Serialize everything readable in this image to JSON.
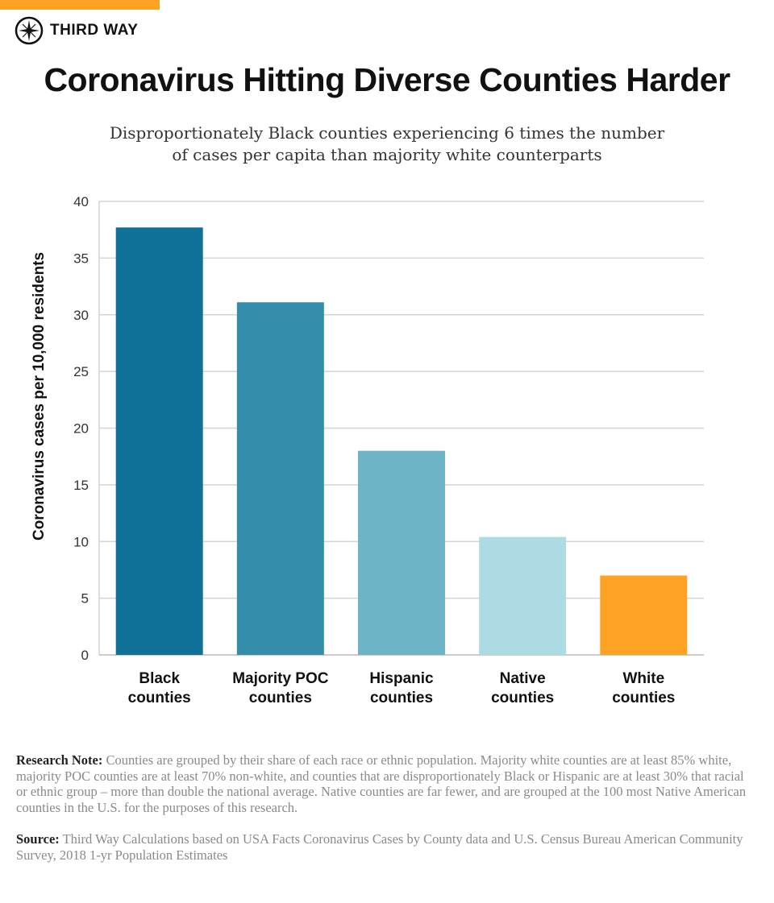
{
  "brand": {
    "name": "THIRD WAY",
    "accent": "#fda223",
    "logo_icon": "compass-star-icon"
  },
  "chart_data": {
    "type": "bar",
    "title": "Coronavirus Hitting Diverse Counties Harder",
    "subtitle": "Disproportionately Black counties experiencing 6 times the number of cases per capita than majority white counterparts",
    "categories": [
      [
        "Black",
        "counties"
      ],
      [
        "Majority POC",
        "counties"
      ],
      [
        "Hispanic",
        "counties"
      ],
      [
        "Native",
        "counties"
      ],
      [
        "White",
        "counties"
      ]
    ],
    "values": [
      37.7,
      31.1,
      18.0,
      10.4,
      7.0
    ],
    "colors": [
      "#0f7098",
      "#338dab",
      "#6bb3c5",
      "#acdbe3",
      "#fda223"
    ],
    "xlabel": "",
    "ylabel": "Coronavirus cases per 10,000 residents",
    "ylim": [
      0,
      40
    ],
    "yticks": [
      0,
      5,
      10,
      15,
      20,
      25,
      30,
      35,
      40
    ],
    "grid": true
  },
  "notes": {
    "research_label": "Research Note:",
    "research_text": " Counties are grouped by their share of each race or ethnic population. Majority white counties are at least 85% white, majority POC counties are at least 70% non-white, and counties that are disproportionately Black or Hispanic are at least 30% that racial or ethnic group – more than double the national average. Native counties are far fewer, and are grouped at the 100 most Native American counties in the U.S. for the purposes of this research.",
    "source_label": "Source:",
    "source_text": " Third Way Calculations based on USA Facts Coronavirus Cases by County data and U.S. Census Bureau American Community Survey, 2018 1-yr Population Estimates"
  }
}
